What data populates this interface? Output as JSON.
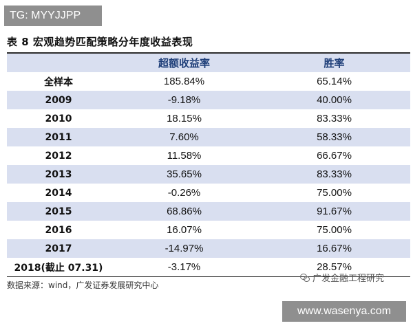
{
  "watermark_top": "TG: MYYJJPP",
  "title": "表 8 宏观趋势匹配策略分年度收益表现",
  "table": {
    "headers": [
      "",
      "超额收益率",
      "胜率"
    ],
    "rows": [
      {
        "label": "全样本",
        "excess": "185.84%",
        "win": "65.14%"
      },
      {
        "label": "2009",
        "excess": "-9.18%",
        "win": "40.00%"
      },
      {
        "label": "2010",
        "excess": "18.15%",
        "win": "83.33%"
      },
      {
        "label": "2011",
        "excess": "7.60%",
        "win": "58.33%"
      },
      {
        "label": "2012",
        "excess": "11.58%",
        "win": "66.67%"
      },
      {
        "label": "2013",
        "excess": "35.65%",
        "win": "83.33%"
      },
      {
        "label": "2014",
        "excess": "-0.26%",
        "win": "75.00%"
      },
      {
        "label": "2015",
        "excess": "68.86%",
        "win": "91.67%"
      },
      {
        "label": "2016",
        "excess": "16.07%",
        "win": "75.00%"
      },
      {
        "label": "2017",
        "excess": "-14.97%",
        "win": "16.67%"
      },
      {
        "label": "2018(截止 07.31)",
        "excess": "-3.17%",
        "win": "28.57%"
      }
    ]
  },
  "source": "数据来源：wind，广发证券发展研究中心",
  "logo_text": "广发金融工程研究",
  "watermark_bottom": "www.wasenya.com"
}
